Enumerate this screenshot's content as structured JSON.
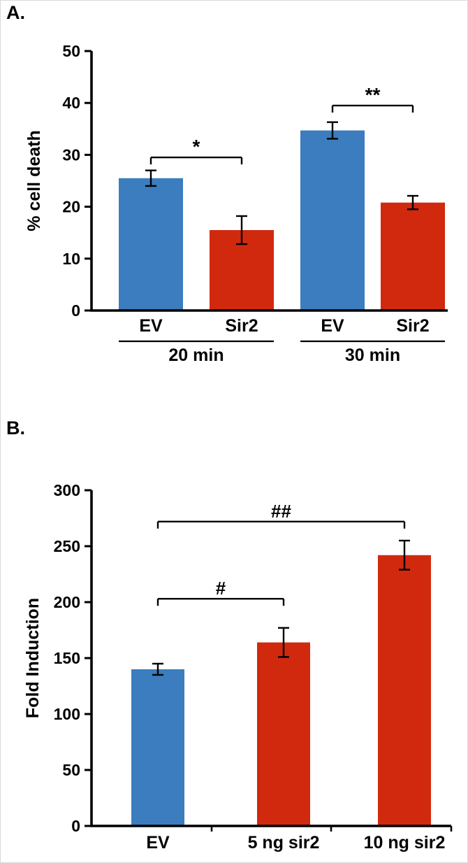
{
  "figure": {
    "panels": [
      {
        "label": "A."
      },
      {
        "label": "B."
      }
    ],
    "colors": {
      "blue": "#3b7dbe",
      "red": "#d1290e",
      "axis": "#000000",
      "text": "#000000"
    }
  },
  "chart_data": [
    {
      "type": "bar",
      "panel": "A",
      "title": "",
      "xlabel": "",
      "ylabel": "% cell death",
      "ylim": [
        0,
        50
      ],
      "yticks": [
        0,
        10,
        20,
        30,
        40,
        50
      ],
      "grid": false,
      "legend": "none",
      "bars": [
        {
          "label": "EV",
          "group": "20 min",
          "value": 25.5,
          "error": 1.5,
          "color": "blue"
        },
        {
          "label": "Sir2",
          "group": "20 min",
          "value": 15.5,
          "error": 2.7,
          "color": "red"
        },
        {
          "label": "EV",
          "group": "30 min",
          "value": 34.7,
          "error": 1.6,
          "color": "blue"
        },
        {
          "label": "Sir2",
          "group": "30 min",
          "value": 20.8,
          "error": 1.3,
          "color": "red"
        }
      ],
      "groups": [
        {
          "label": "20 min",
          "from": 0,
          "to": 1
        },
        {
          "label": "30 min",
          "from": 2,
          "to": 3
        }
      ],
      "annotations": [
        {
          "label": "*",
          "from": 0,
          "to": 1,
          "y": 29.5
        },
        {
          "label": "**",
          "from": 2,
          "to": 3,
          "y": 39.5
        }
      ]
    },
    {
      "type": "bar",
      "panel": "B",
      "title": "",
      "xlabel": "",
      "ylabel": "Fold Induction",
      "ylim": [
        0,
        300
      ],
      "yticks": [
        0,
        50,
        100,
        150,
        200,
        250,
        300
      ],
      "grid": false,
      "legend": "none",
      "bars": [
        {
          "label": "EV",
          "value": 140,
          "error": 5,
          "color": "blue"
        },
        {
          "label": "5 ng sir2",
          "value": 164,
          "error": 13,
          "color": "red"
        },
        {
          "label": "10 ng sir2",
          "value": 242,
          "error": 13,
          "color": "red"
        }
      ],
      "groups": [],
      "annotations": [
        {
          "label": "#",
          "from": 0,
          "to": 1,
          "y": 203
        },
        {
          "label": "##",
          "from": 0,
          "to": 2,
          "y": 272
        }
      ]
    }
  ]
}
